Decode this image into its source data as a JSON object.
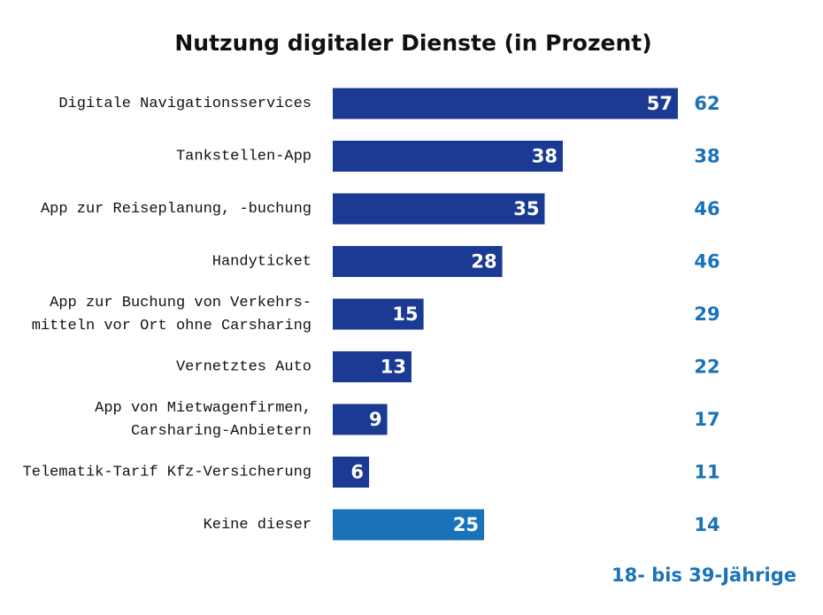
{
  "chart_data": {
    "type": "bar",
    "orientation": "horizontal",
    "title": "Nutzung digitaler Dienste  (in Prozent)",
    "categories": [
      "Digitale Navigationsservices",
      "Tankstellen-App",
      "App zur Reiseplanung, -buchung",
      "Handyticket",
      "App zur Buchung von Verkehrs-\nmitteln vor Ort ohne Carsharing",
      "Vernetztes Auto",
      "App von Mietwagenfirmen,\nCarsharing-Anbietern",
      "Telematik-Tarif Kfz-Versicherung",
      "Keine dieser"
    ],
    "series": [
      {
        "color": "#1b3a93",
        "colors": [
          "#1b3a93",
          "#1b3a93",
          "#1b3a93",
          "#1b3a93",
          "#1b3a93",
          "#1b3a93",
          "#1b3a93",
          "#1b3a93",
          "#1a73b9"
        ],
        "values": [
          57,
          38,
          35,
          28,
          15,
          13,
          9,
          6,
          25
        ]
      },
      {
        "name": "18- bis 39-Jährige",
        "color": "#1a73b9",
        "values": [
          62,
          38,
          46,
          46,
          29,
          22,
          17,
          11,
          14
        ]
      }
    ]
  }
}
